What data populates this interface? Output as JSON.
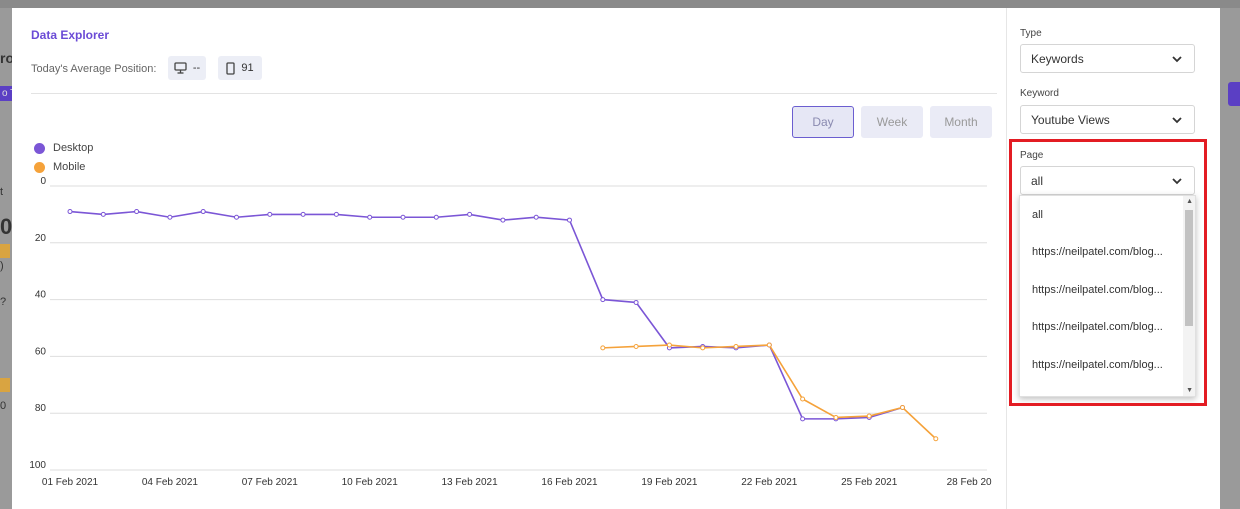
{
  "background_fragments": {
    "left_top": "ro",
    "left_button": "o T",
    "left_mid": "t",
    "left_zero": "0",
    "left_small": ")",
    "left_help": "?",
    "left_bottom": "0"
  },
  "modal": {
    "title": "Data Explorer",
    "avg_position_label": "Today's Average Position:",
    "desktop_value": "--",
    "mobile_value": "91"
  },
  "range_buttons": {
    "day": "Day",
    "week": "Week",
    "month": "Month",
    "active": "Day"
  },
  "legend": {
    "desktop": "Desktop",
    "mobile": "Mobile"
  },
  "filters": {
    "type_label": "Type",
    "type_value": "Keywords",
    "keyword_label": "Keyword",
    "keyword_value": "Youtube Views",
    "page_label": "Page",
    "page_value": "all",
    "page_options": [
      "all",
      "https://neilpatel.com/blog...",
      "https://neilpatel.com/blog...",
      "https://neilpatel.com/blog...",
      "https://neilpatel.com/blog..."
    ]
  },
  "colors": {
    "desktop": "#7b56d6",
    "mobile": "#f5a23a",
    "accent": "#6b4bd6",
    "highlight": "#e31c23"
  },
  "icons": {
    "desktop": "monitor-icon",
    "mobile": "phone-icon",
    "chevron": "chevron-down-icon"
  },
  "chart_data": {
    "type": "line",
    "ylim": [
      0,
      100
    ],
    "y_inverted": true,
    "y_ticks": [
      "0",
      "20",
      "40",
      "60",
      "80",
      "100"
    ],
    "x_tick_labels": [
      "01 Feb 2021",
      "04 Feb 2021",
      "07 Feb 2021",
      "10 Feb 2021",
      "13 Feb 2021",
      "16 Feb 2021",
      "19 Feb 2021",
      "22 Feb 2021",
      "25 Feb 2021",
      "28 Feb 20"
    ],
    "grid": true,
    "legend_position": "top-left",
    "series": [
      {
        "name": "Desktop",
        "color": "#7b56d6",
        "values": [
          9,
          10,
          9,
          11,
          9,
          11,
          10,
          10,
          10,
          11,
          11,
          11,
          10,
          12,
          11,
          12,
          40,
          41,
          57,
          56.5,
          57,
          56,
          82,
          82,
          81.5,
          78,
          null
        ]
      },
      {
        "name": "Mobile",
        "color": "#f5a23a",
        "values": [
          null,
          null,
          null,
          null,
          null,
          null,
          null,
          null,
          null,
          null,
          null,
          null,
          null,
          null,
          null,
          null,
          57,
          56.5,
          56,
          57,
          56.5,
          56,
          75,
          81.5,
          81,
          78,
          89
        ]
      }
    ]
  }
}
